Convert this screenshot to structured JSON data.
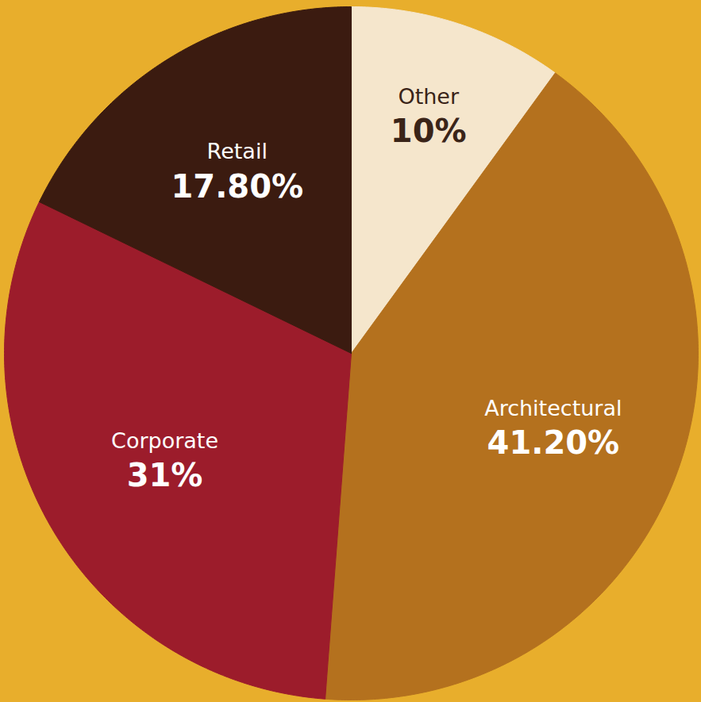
{
  "chart_data": {
    "type": "pie",
    "categories": [
      "Other",
      "Architectural",
      "Corporate",
      "Retail"
    ],
    "values": [
      10,
      41.2,
      31,
      17.8
    ],
    "value_labels": [
      "10%",
      "41.20%",
      "31%",
      "17.80%"
    ],
    "colors": [
      "#F5E6CC",
      "#B4711E",
      "#9C1C2B",
      "#3B1B10"
    ],
    "data_labels": true,
    "tick_labels": false
  }
}
